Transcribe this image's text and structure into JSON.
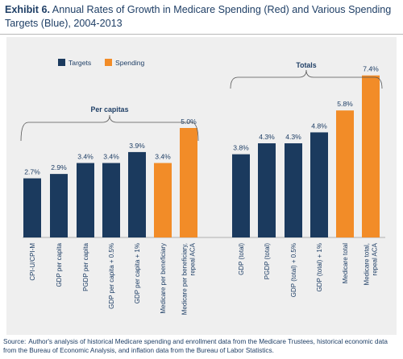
{
  "title": {
    "bold": "Exhibit 6.",
    "text": "Annual Rates of Growth in Medicare Spending (Red) and Various Spending Targets (Blue), 2004-2013"
  },
  "legend": {
    "items": [
      {
        "label": "Targets",
        "color": "#1b3a5e"
      },
      {
        "label": "Spending",
        "color": "#f28c28"
      }
    ],
    "position": "top-left"
  },
  "groups": {
    "per_capitas": "Per capitas",
    "totals": "Totals"
  },
  "source": {
    "label": "Source:",
    "text": "Author's analysis of historical Medicare spending and enrollment data from the Medicare Trustees, historical economic data from the Bureau of Economic Analysis, and inflation data from the Bureau of Labor Statistics."
  },
  "chart_data": {
    "type": "bar",
    "categories": [
      "CPI-U/CPI-M",
      "GDP per capita",
      "PGDP per capita",
      "GDP per capita + 0.5%",
      "GDP per capita + 1%",
      "Medicare per beneficiary",
      "Medicare per beneficiary, repeal ACA",
      "GDP (total)",
      "PGDP (total)",
      "GDP (total) + 0.5%",
      "GDP (total) + 1%",
      "Medicare total",
      "Medicare total, repeal ACA"
    ],
    "values": [
      2.7,
      2.9,
      3.4,
      3.4,
      3.9,
      3.4,
      5.0,
      3.8,
      4.3,
      4.3,
      4.8,
      5.8,
      7.4
    ],
    "data_labels": [
      "2.7%",
      "2.9%",
      "3.4%",
      "3.4%",
      "3.9%",
      "3.4%",
      "5.0%",
      "3.8%",
      "4.3%",
      "4.3%",
      "4.8%",
      "5.8%",
      "7.4%"
    ],
    "kinds": [
      "Targets",
      "Targets",
      "Targets",
      "Targets",
      "Targets",
      "Spending",
      "Spending",
      "Targets",
      "Targets",
      "Targets",
      "Targets",
      "Spending",
      "Spending"
    ],
    "colors": {
      "Targets": "#1b3a5e",
      "Spending": "#f28c28"
    },
    "ylim": [
      0,
      8
    ],
    "grid": false
  }
}
